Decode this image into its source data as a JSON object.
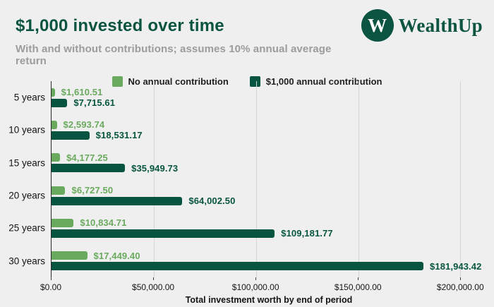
{
  "page": {
    "background": "#efefef"
  },
  "header": {
    "title": "$1,000 invested over time",
    "subtitle": "With and without contributions; assumes 10% annual average return",
    "logo": {
      "brand": "WealthUp",
      "monogram": "W",
      "color": "#0a5441"
    }
  },
  "legend": [
    {
      "label": "No annual contribution",
      "color": "#6aaa5e"
    },
    {
      "label": "$1,000 annual contribution",
      "color": "#075540"
    }
  ],
  "chart_data": {
    "type": "bar",
    "orientation": "horizontal",
    "title": "$1,000 invested over time",
    "subtitle": "With and without contributions; assumes 10% annual average return",
    "categories": [
      "5 years",
      "10 years",
      "15 years",
      "20 years",
      "25 years",
      "30 years"
    ],
    "series": [
      {
        "name": "No annual contribution",
        "color": "#6aaa5e",
        "values": [
          1610.51,
          2593.74,
          4177.25,
          6727.5,
          10834.71,
          17449.4
        ],
        "labels": [
          "$1,610.51",
          "$2,593.74",
          "$4,177.25",
          "$6,727.50",
          "$10,834.71",
          "$17,449.40"
        ]
      },
      {
        "name": "$1,000 annual contribution",
        "color": "#075540",
        "values": [
          7715.61,
          18531.17,
          35949.73,
          64002.5,
          109181.77,
          181943.42
        ],
        "labels": [
          "$7,715.61",
          "$18,531.17",
          "$35,949.73",
          "$64,002.50",
          "$109,181.77",
          "$181,943.42"
        ]
      }
    ],
    "xlabel": "Total investment worth by end of period",
    "x_ticks": [
      0,
      50000,
      100000,
      150000,
      200000
    ],
    "x_tick_labels": [
      "$0.00",
      "$50,000.00",
      "$100,000.00",
      "$150,000.00",
      "$200,000.00"
    ],
    "xlim": [
      0,
      213000
    ],
    "grid": true,
    "legend_position": "top"
  }
}
